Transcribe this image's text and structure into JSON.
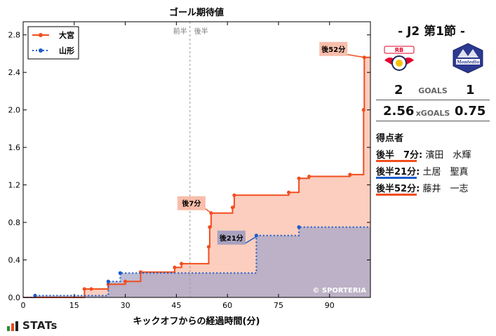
{
  "chart_data": {
    "type": "line",
    "step": true,
    "title": "ゴール期待値",
    "xlabel": "キックオフからの経過時間(分)",
    "ylabel": "",
    "xlim": [
      0,
      102
    ],
    "ylim": [
      0,
      2.94
    ],
    "xticks": [
      0,
      15,
      30,
      45,
      60,
      75,
      90
    ],
    "yticks": [
      0.0,
      0.4,
      0.8,
      1.2,
      1.6,
      2.0,
      2.4,
      2.8
    ],
    "half_time_x": 49,
    "half_labels": {
      "first": "前半",
      "second": "後半"
    },
    "legend_position": "upper-left",
    "watermark": "© SPORTERIA",
    "series": [
      {
        "name": "大宮",
        "color": "#f04e1f",
        "fill": "#f7a58a",
        "style": "solid",
        "points": [
          [
            0,
            0.0
          ],
          [
            18,
            0.09
          ],
          [
            20,
            0.09
          ],
          [
            25,
            0.14
          ],
          [
            30,
            0.17
          ],
          [
            34.5,
            0.27
          ],
          [
            44.5,
            0.32
          ],
          [
            46.5,
            0.36
          ],
          [
            54.5,
            0.54
          ],
          [
            54.8,
            0.75
          ],
          [
            55.2,
            0.9
          ],
          [
            61.5,
            0.96
          ],
          [
            62,
            1.09
          ],
          [
            78,
            1.12
          ],
          [
            81,
            1.27
          ],
          [
            84,
            1.29
          ],
          [
            96,
            1.31
          ],
          [
            100,
            2.0
          ],
          [
            100.2,
            2.56
          ],
          [
            102,
            2.56
          ]
        ]
      },
      {
        "name": "山形",
        "color": "#1d5cc9",
        "fill": "#a7a7c8",
        "style": "dotted",
        "points": [
          [
            0,
            0.0
          ],
          [
            3.5,
            0.02
          ],
          [
            25,
            0.17
          ],
          [
            28.5,
            0.26
          ],
          [
            68.5,
            0.66
          ],
          [
            81,
            0.75
          ],
          [
            102,
            0.75
          ]
        ]
      }
    ],
    "annotations": [
      {
        "label": "後7分",
        "series": "大宮",
        "x": 55.2,
        "y": 0.9
      },
      {
        "label": "後21分",
        "series": "山形",
        "x": 69,
        "y": 0.66
      },
      {
        "label": "後52分",
        "series": "大宮",
        "x": 100.2,
        "y": 2.56
      }
    ]
  },
  "match": {
    "title": "- J2 第1節 -",
    "home_crest_icon": "rb-omiya-crest-icon",
    "away_crest_icon": "montedio-yamagata-crest-icon",
    "goals_label": "GOALS",
    "home_goals": "2",
    "away_goals": "1",
    "xgoals_label": "xGOALS",
    "home_xg": "2.56",
    "away_xg": "0.75"
  },
  "scorers": {
    "title": "得点者",
    "items": [
      {
        "time": "後半　7分:",
        "name": "濱田　水輝",
        "color": "#f04e1f"
      },
      {
        "time": "後半21分:",
        "name": "土居　聖真",
        "color": "#1d5cc9"
      },
      {
        "time": "後半52分:",
        "name": "藤井　一志",
        "color": "#f04e1f"
      }
    ]
  },
  "brand": {
    "name": "STATs",
    "icon": "stats-bars-icon"
  }
}
